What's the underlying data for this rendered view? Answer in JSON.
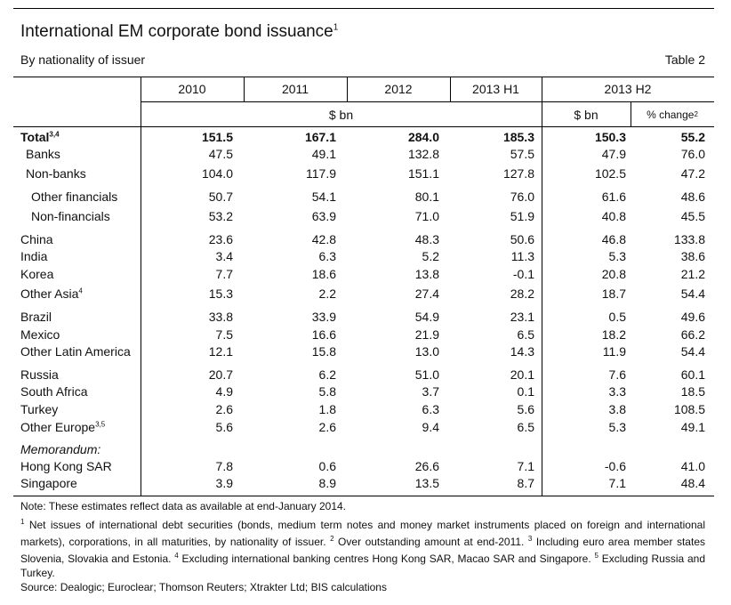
{
  "title": "International EM corporate bond issuance",
  "title_note": "1",
  "subtitle": "By nationality of issuer",
  "table_number": "Table 2",
  "columns": [
    "2010",
    "2011",
    "2012",
    "2013 H1",
    "2013 H2"
  ],
  "units": {
    "bn": "$ bn",
    "h2_bn": "$ bn",
    "pct": "% change",
    "pct_note": "2"
  },
  "rows": [
    {
      "label": "Total",
      "note": "3,4",
      "values": [
        "151.5",
        "167.1",
        "284.0",
        "185.3",
        "150.3",
        "55.2"
      ]
    },
    {
      "label": "Banks",
      "values": [
        "47.5",
        "49.1",
        "132.8",
        "57.5",
        "47.9",
        "76.0"
      ]
    },
    {
      "label": "Non-banks",
      "values": [
        "104.0",
        "117.9",
        "151.1",
        "127.8",
        "102.5",
        "47.2"
      ]
    },
    {
      "label": "Other financials",
      "values": [
        "50.7",
        "54.1",
        "80.1",
        "76.0",
        "61.6",
        "48.6"
      ]
    },
    {
      "label": "Non-financials",
      "values": [
        "53.2",
        "63.9",
        "71.0",
        "51.9",
        "40.8",
        "45.5"
      ]
    },
    {
      "label": "China",
      "values": [
        "23.6",
        "42.8",
        "48.3",
        "50.6",
        "46.8",
        "133.8"
      ]
    },
    {
      "label": "India",
      "values": [
        "3.4",
        "6.3",
        "5.2",
        "11.3",
        "5.3",
        "38.6"
      ]
    },
    {
      "label": "Korea",
      "values": [
        "7.7",
        "18.6",
        "13.8",
        "-0.1",
        "20.8",
        "21.2"
      ]
    },
    {
      "label": "Other Asia",
      "note": "4",
      "values": [
        "15.3",
        "2.2",
        "27.4",
        "28.2",
        "18.7",
        "54.4"
      ]
    },
    {
      "label": "Brazil",
      "values": [
        "33.8",
        "33.9",
        "54.9",
        "23.1",
        "0.5",
        "49.6"
      ]
    },
    {
      "label": "Mexico",
      "values": [
        "7.5",
        "16.6",
        "21.9",
        "6.5",
        "18.2",
        "66.2"
      ]
    },
    {
      "label": "Other Latin America",
      "values": [
        "12.1",
        "15.8",
        "13.0",
        "14.3",
        "11.9",
        "54.4"
      ]
    },
    {
      "label": "Russia",
      "values": [
        "20.7",
        "6.2",
        "51.0",
        "20.1",
        "7.6",
        "60.1"
      ]
    },
    {
      "label": "South Africa",
      "values": [
        "4.9",
        "5.8",
        "3.7",
        "0.1",
        "3.3",
        "18.5"
      ]
    },
    {
      "label": "Turkey",
      "values": [
        "2.6",
        "1.8",
        "6.3",
        "5.6",
        "3.8",
        "108.5"
      ]
    },
    {
      "label": "Other Europe",
      "note": "3,5",
      "values": [
        "5.6",
        "2.6",
        "9.4",
        "6.5",
        "5.3",
        "49.1"
      ]
    },
    {
      "label": "Hong Kong SAR",
      "values": [
        "7.8",
        "0.6",
        "26.6",
        "7.1",
        "-0.6",
        "41.0"
      ]
    },
    {
      "label": "Singapore",
      "values": [
        "3.9",
        "8.9",
        "13.5",
        "8.7",
        "7.1",
        "48.4"
      ]
    }
  ],
  "memorandum_label": "Memorandum:",
  "notes": {
    "note": "Note: These estimates reflect data as available at end-January 2014.",
    "n1_marker": "1",
    "n1": " Net issues of international debt securities (bonds, medium term notes and money market instruments placed on foreign and international markets), corporations, in all maturities, by nationality of issuer. ",
    "n2_marker": "2",
    "n2": " Over outstanding amount at end-2011. ",
    "n3_marker": "3",
    "n3": " Including euro area member states Slovenia, Slovakia and Estonia. ",
    "n4_marker": "4",
    "n4": " Excluding international banking centres Hong Kong SAR, Macao SAR and Singapore. ",
    "n5_marker": "5",
    "n5": " Excluding Russia and Turkey.",
    "source": "Source: Dealogic; Euroclear; Thomson Reuters; Xtrakter Ltd; BIS calculations"
  }
}
